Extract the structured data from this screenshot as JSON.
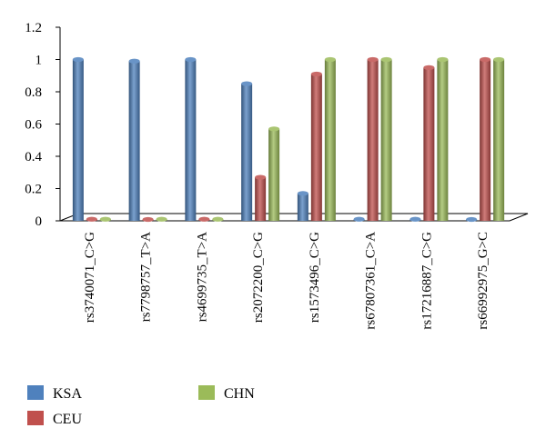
{
  "chart_data": {
    "type": "bar",
    "title": "",
    "xlabel": "",
    "ylabel": "",
    "ylim": [
      0,
      1.2
    ],
    "yticks": [
      "0",
      "0.2",
      "0.4",
      "0.6",
      "0.8",
      "1",
      "1.2"
    ],
    "grid": false,
    "legend_position": "bottom-left",
    "categories": [
      "rs3740071_C>G",
      "rs7798757_T>A",
      "rs4699735_T>A",
      "rs2072200_C>G",
      "rs1573496_C>G",
      "rs67807361_C>A",
      "rs17216887_C>G",
      "rs66992975_G>C"
    ],
    "series": [
      {
        "name": "KSA",
        "color": "#4F81BD",
        "values": [
          1.0,
          0.99,
          1.0,
          0.85,
          0.17,
          0.01,
          0.01,
          0.0
        ]
      },
      {
        "name": "CEU",
        "color": "#C0504D",
        "values": [
          0.01,
          0.0,
          0.01,
          0.27,
          0.91,
          1.0,
          0.95,
          1.0
        ]
      },
      {
        "name": "CHN",
        "color": "#9BBB59",
        "values": [
          0.01,
          0.01,
          0.01,
          0.57,
          1.0,
          1.0,
          1.0,
          1.0
        ]
      }
    ]
  }
}
